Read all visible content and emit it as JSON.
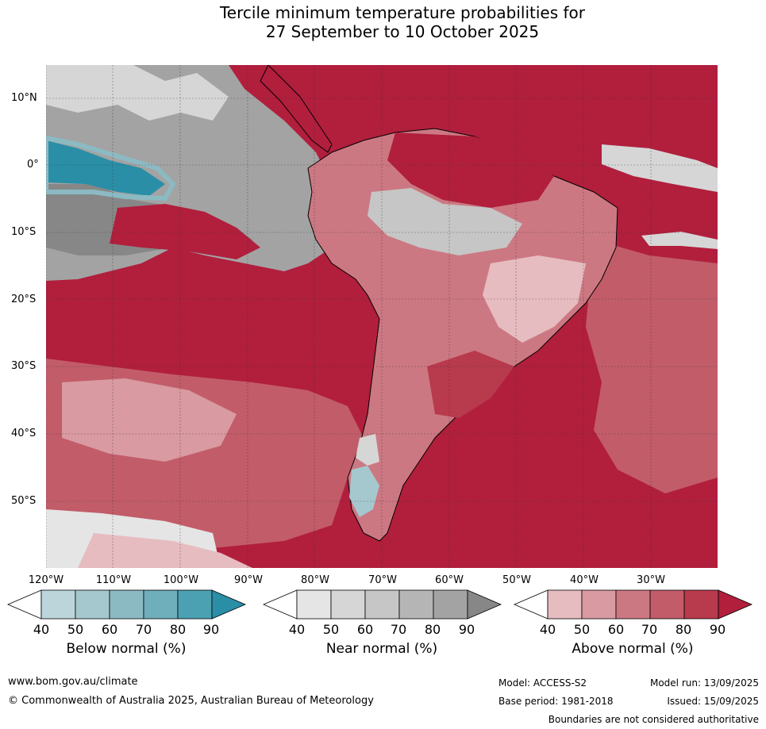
{
  "title_line1": "Tercile minimum temperature probabilities for",
  "title_line2": "27 September to 10 October 2025",
  "lat_labels": [
    "10°N",
    "0°",
    "10°S",
    "20°S",
    "30°S",
    "40°S",
    "50°S"
  ],
  "lon_labels": [
    "120°W",
    "110°W",
    "100°W",
    "90°W",
    "80°W",
    "70°W",
    "60°W",
    "50°W",
    "40°W",
    "30°W"
  ],
  "colorbars": [
    {
      "title": "Below normal (%)",
      "ticks": [
        "40",
        "50",
        "60",
        "70",
        "80",
        "90"
      ],
      "colors": [
        "#ffffff",
        "#bcd5db",
        "#a5c8cf",
        "#8cbac3",
        "#6faebb",
        "#4ba1b2",
        "#2a8fa6"
      ]
    },
    {
      "title": "Near normal (%)",
      "ticks": [
        "40",
        "50",
        "60",
        "70",
        "80",
        "90"
      ],
      "colors": [
        "#ffffff",
        "#e5e5e5",
        "#d6d6d6",
        "#c6c6c6",
        "#b5b5b5",
        "#a3a3a3",
        "#878787"
      ]
    },
    {
      "title": "Above normal (%)",
      "ticks": [
        "40",
        "50",
        "60",
        "70",
        "80",
        "90"
      ],
      "colors": [
        "#ffffff",
        "#e6bcc0",
        "#d99aa1",
        "#cc7882",
        "#c25c69",
        "#b83a4d",
        "#b11f3d"
      ]
    }
  ],
  "footer": {
    "website": "www.bom.gov.au/climate",
    "copyright": "© Commonwealth of Australia 2025, Australian Bureau of Meteorology",
    "model": "Model: ACCESS-S2",
    "base_period": "Base period: 1981-2018",
    "model_run": "Model run: 13/09/2025",
    "issued": "Issued: 15/09/2025",
    "disclaimer": "Boundaries are not considered authoritative"
  }
}
